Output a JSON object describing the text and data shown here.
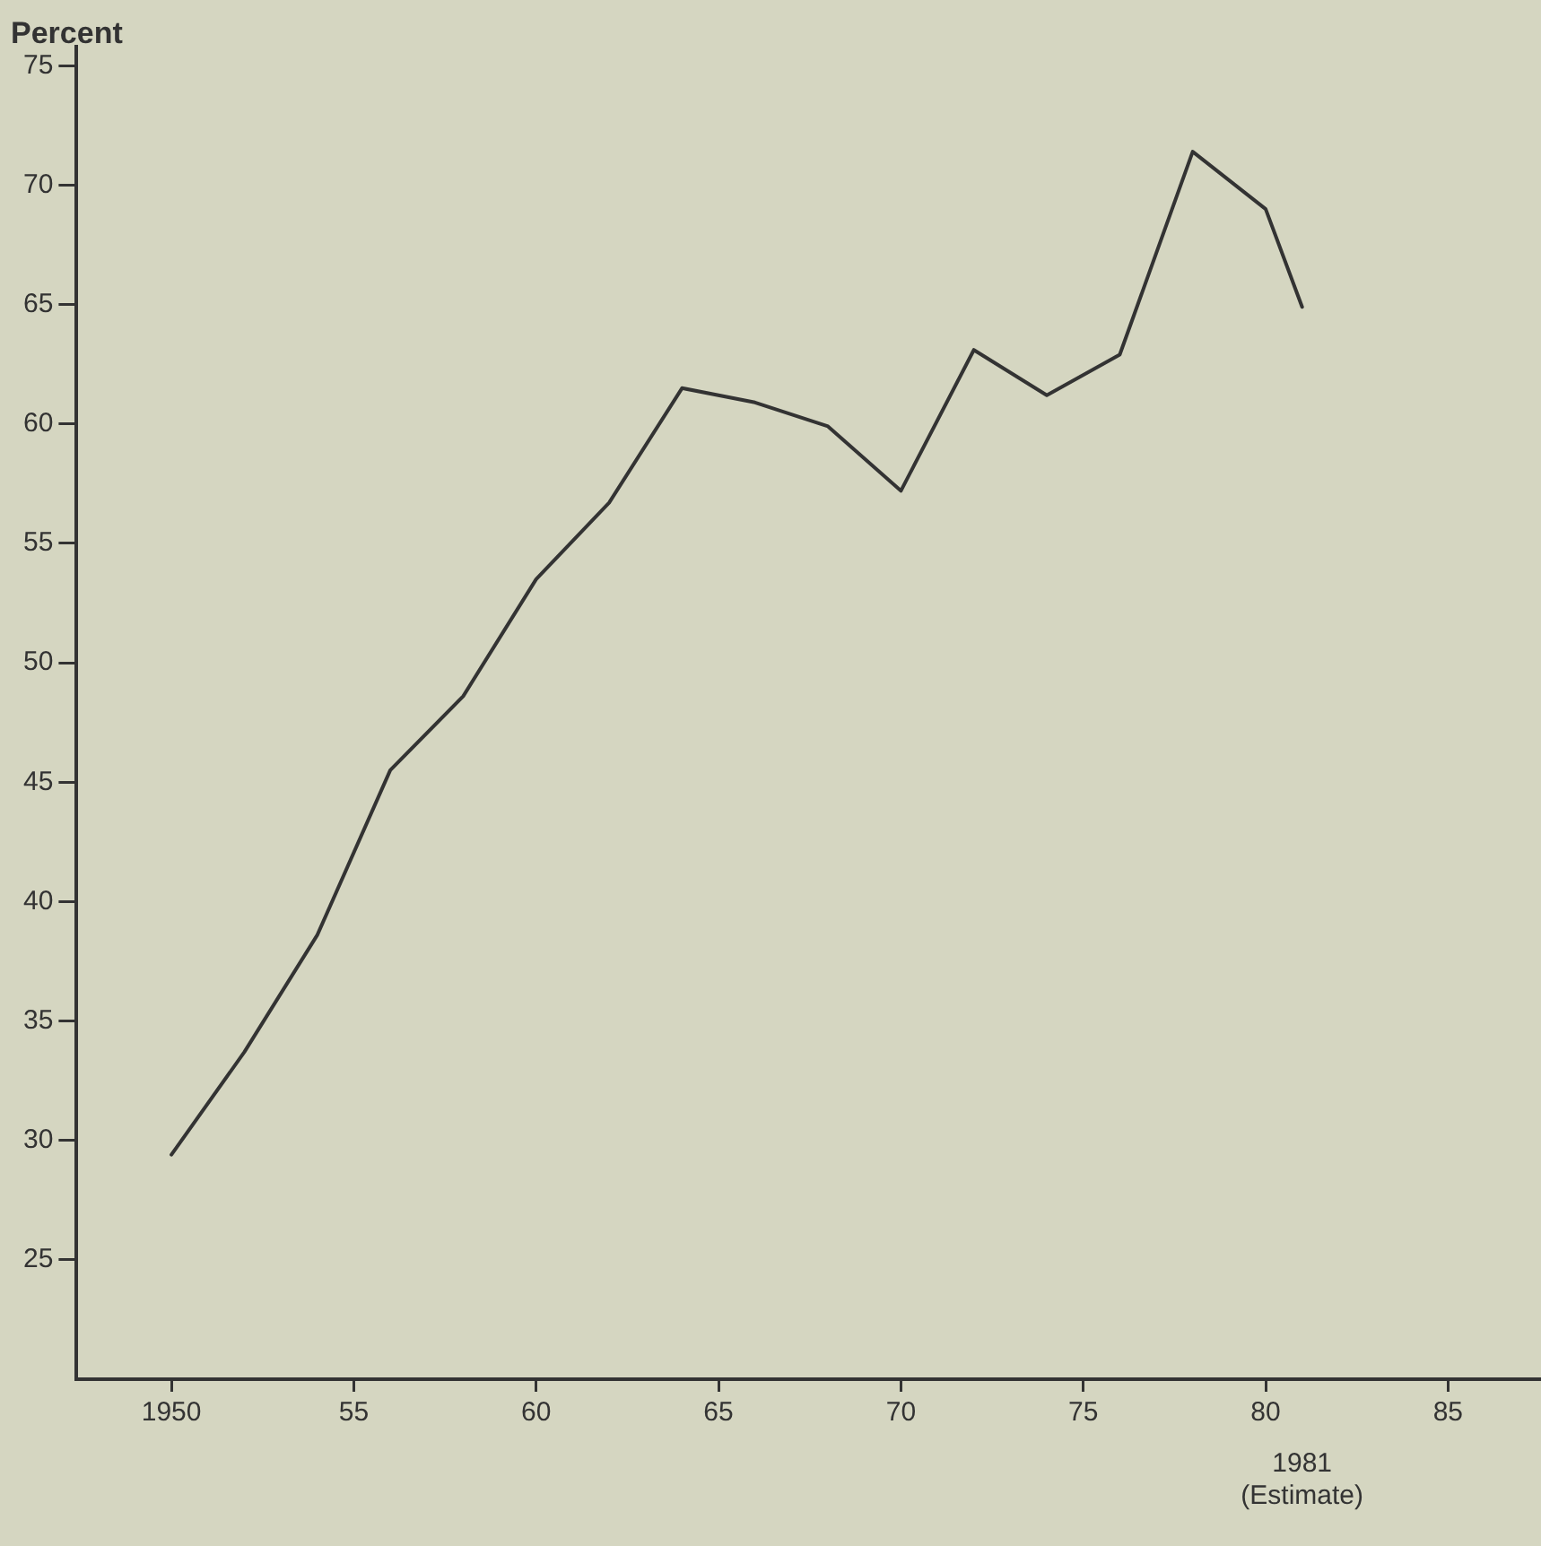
{
  "chart_data": {
    "type": "line",
    "ylabel": "Percent",
    "x": [
      1950,
      1952,
      1954,
      1956,
      1958,
      1960,
      1962,
      1964,
      1966,
      1968,
      1970,
      1972,
      1974,
      1976,
      1978,
      1980,
      1981
    ],
    "series": [
      {
        "color": "#333333",
        "values": [
          29.4,
          33.7,
          38.6,
          45.5,
          48.6,
          53.5,
          56.7,
          61.5,
          60.9,
          59.9,
          57.2,
          63.1,
          61.2,
          62.9,
          71.4,
          69.0,
          64.9
        ]
      }
    ],
    "xlim": [
      1947.4,
      1987.5
    ],
    "ylim": [
      20,
      75.8
    ],
    "xticks": [
      1950,
      {
        "value": 1955,
        "label": "55"
      },
      {
        "value": 1960,
        "label": "60"
      },
      {
        "value": 1965,
        "label": "65"
      },
      {
        "value": 1970,
        "label": "70"
      },
      {
        "value": 1975,
        "label": "75"
      },
      {
        "value": 1980,
        "label": "80"
      },
      {
        "value": 1985,
        "label": "85"
      }
    ],
    "yticks": [
      25,
      30,
      35,
      40,
      45,
      50,
      55,
      60,
      65,
      70,
      75
    ],
    "annotations": [
      "1981 (Estimate)"
    ],
    "grid": false,
    "legend": false,
    "marker": "none",
    "line_style": "solid"
  }
}
